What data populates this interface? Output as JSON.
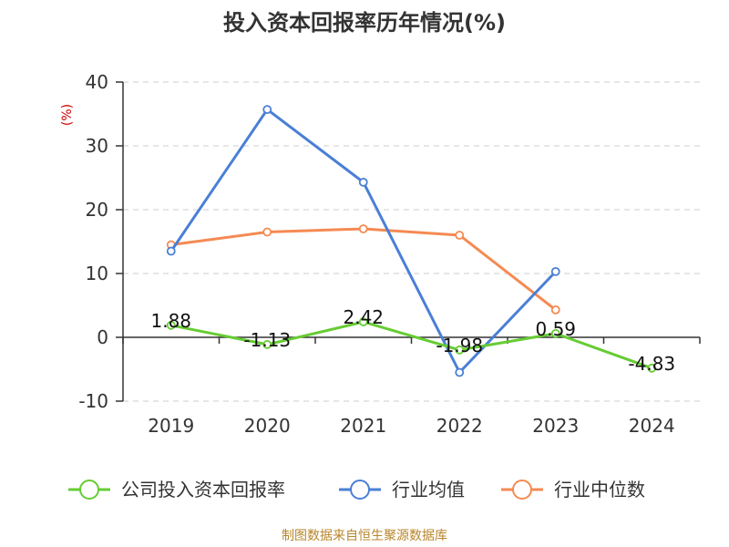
{
  "title": "投入资本回报率历年情况(%)",
  "source": "制图数据来自恒生聚源数据库",
  "chart_data": {
    "type": "line",
    "title": "投入资本回报率历年情况(%)",
    "ylabel": "(%)",
    "xlabel": "",
    "categories": [
      "2019",
      "2020",
      "2021",
      "2022",
      "2023",
      "2024"
    ],
    "ylim": [
      -10,
      40
    ],
    "yticks": [
      -10,
      0,
      10,
      20,
      30,
      40
    ],
    "grid": true,
    "legend_position": "bottom",
    "series": [
      {
        "name": "公司投入资本回报率",
        "color": "#66cc33",
        "values": [
          1.88,
          -1.13,
          2.42,
          -1.98,
          0.59,
          -4.83
        ],
        "labels": [
          "1.88",
          "-1.13",
          "2.42",
          "-1.98",
          "0.59",
          "-4.83"
        ]
      },
      {
        "name": "行业均值",
        "color": "#4a7fd6",
        "values": [
          13.5,
          35.7,
          24.3,
          -5.5,
          10.3,
          null
        ]
      },
      {
        "name": "行业中位数",
        "color": "#f58a52",
        "values": [
          14.5,
          16.5,
          17.0,
          16.0,
          4.3,
          null
        ]
      }
    ]
  }
}
